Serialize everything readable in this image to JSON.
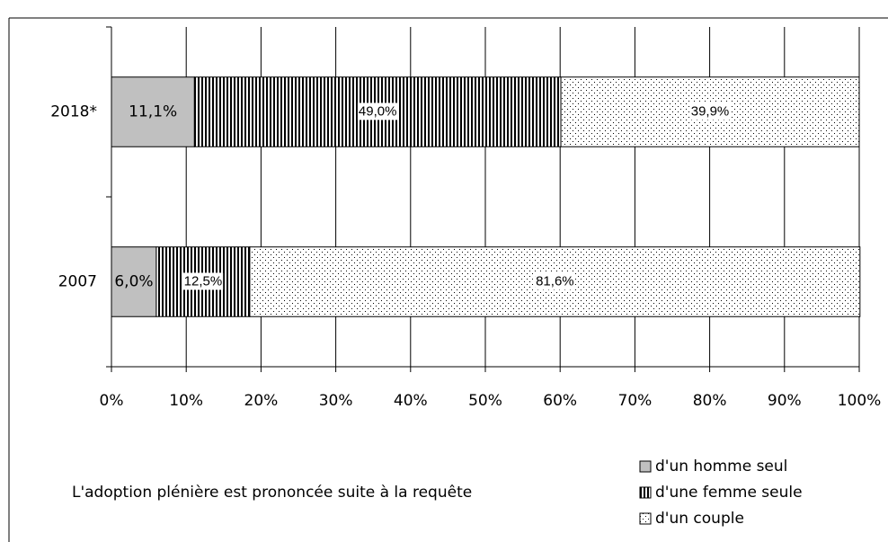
{
  "chart_data": {
    "type": "stacked-bar-horizontal",
    "note": "L'adoption plénière est prononcée suite à la requête",
    "categories": [
      "2018*",
      "2007"
    ],
    "series": [
      {
        "name": "d'un homme seul",
        "color": "#c0c0c0",
        "pattern": "solid",
        "values": [
          11.1,
          6.0
        ],
        "value_labels": [
          "11,1%",
          "6,0%"
        ]
      },
      {
        "name": "d'une femme seule",
        "color": "#000000",
        "pattern": "vertical-stripes",
        "values": [
          49.0,
          12.5
        ],
        "value_labels": [
          "49,0%",
          "12,5%"
        ]
      },
      {
        "name": "d'un couple",
        "color": "#000000",
        "pattern": "dots",
        "values": [
          39.9,
          81.6
        ],
        "value_labels": [
          "39,9%",
          "81,6%"
        ]
      }
    ],
    "xlim": [
      0,
      100
    ],
    "xticks": [
      {
        "value": 0,
        "label": "0%"
      },
      {
        "value": 10,
        "label": "10%"
      },
      {
        "value": 20,
        "label": "20%"
      },
      {
        "value": 30,
        "label": "30%"
      },
      {
        "value": 40,
        "label": "40%"
      },
      {
        "value": 50,
        "label": "50%"
      },
      {
        "value": 60,
        "label": "60%"
      },
      {
        "value": 70,
        "label": "70%"
      },
      {
        "value": 80,
        "label": "80%"
      },
      {
        "value": 90,
        "label": "90%"
      },
      {
        "value": 100,
        "label": "100%"
      }
    ],
    "grid": true,
    "legend": "bottom-right"
  }
}
